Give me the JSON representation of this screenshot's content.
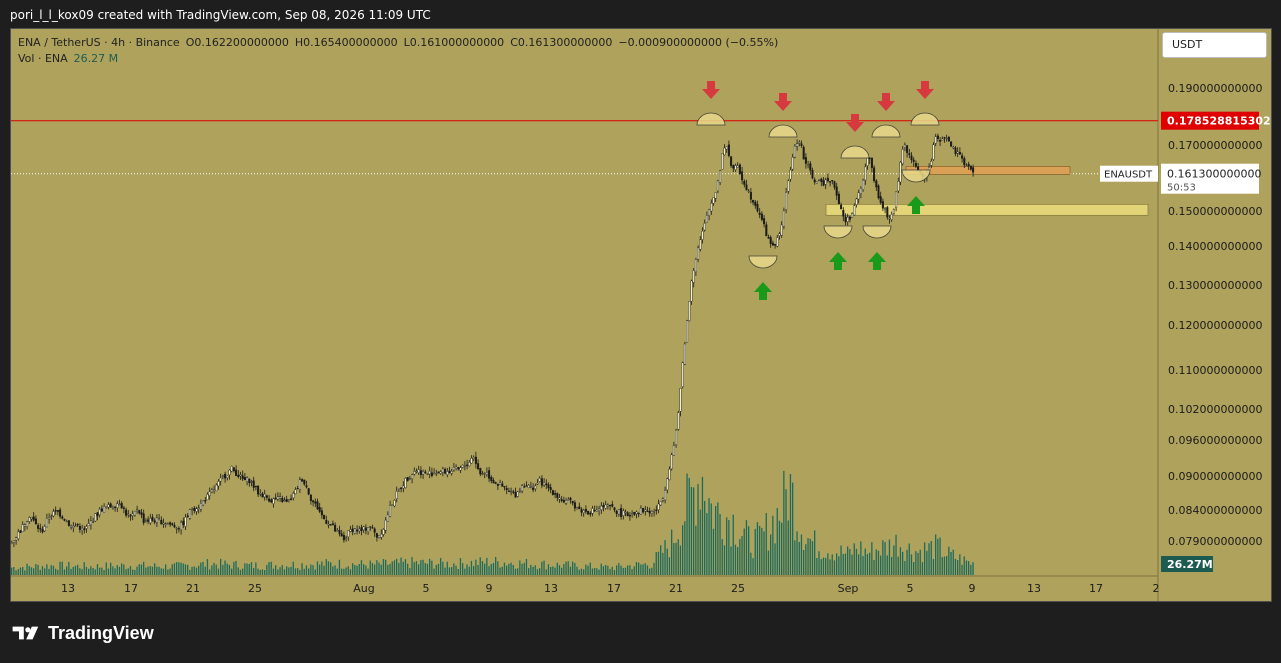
{
  "header": {
    "credit": "pori_l_l_kox09 created with TradingView.com, Sep 08, 2026 11:09 UTC"
  },
  "legend": {
    "symbol": "ENA / TetherUS · 4h · Binance",
    "open": "O0.162200000000",
    "high": "H0.165400000000",
    "low": "L0.161000000000",
    "close": "C0.161300000000",
    "change": "−0.000900000000 (−0.55%)",
    "vol_label": "Vol · ENA",
    "vol_value": "26.27 M"
  },
  "currency_button": "USDT",
  "brand": "TradingView",
  "chart_data": {
    "type": "candlestick",
    "symbol": "ENAUSDT",
    "timeframe": "4h",
    "exchange": "Binance",
    "y_axis": {
      "tick_labels": [
        "0.190000000000",
        "0.170000000000",
        "0.150000000000",
        "0.140000000000",
        "0.130000000000",
        "0.120000000000",
        "0.110000000000",
        "0.102000000000",
        "0.096000000000",
        "0.090000000000",
        "0.084000000000",
        "0.079000000000"
      ],
      "tick_values": [
        0.19,
        0.17,
        0.15,
        0.14,
        0.13,
        0.12,
        0.11,
        0.102,
        0.096,
        0.09,
        0.084,
        0.079
      ],
      "scale": "nonlinear (as printed)"
    },
    "x_axis": {
      "tick_labels": [
        "13",
        "17",
        "21",
        "25",
        "Aug",
        "5",
        "9",
        "13",
        "17",
        "21",
        "25",
        "Sep",
        "5",
        "9",
        "13",
        "17",
        "2"
      ]
    },
    "price_path": [
      [
        0,
        0.0788
      ],
      [
        10,
        0.081
      ],
      [
        18,
        0.0833
      ],
      [
        24,
        0.0816
      ],
      [
        30,
        0.0805
      ],
      [
        38,
        0.0832
      ],
      [
        46,
        0.0837
      ],
      [
        52,
        0.0828
      ],
      [
        60,
        0.0812
      ],
      [
        66,
        0.0816
      ],
      [
        72,
        0.0805
      ],
      [
        80,
        0.0823
      ],
      [
        90,
        0.0842
      ],
      [
        100,
        0.0847
      ],
      [
        108,
        0.0854
      ],
      [
        114,
        0.0835
      ],
      [
        120,
        0.0826
      ],
      [
        126,
        0.0844
      ],
      [
        132,
        0.0823
      ],
      [
        140,
        0.0824
      ],
      [
        150,
        0.0822
      ],
      [
        160,
        0.0816
      ],
      [
        168,
        0.0812
      ],
      [
        174,
        0.0825
      ],
      [
        180,
        0.0842
      ],
      [
        188,
        0.0848
      ],
      [
        196,
        0.0864
      ],
      [
        204,
        0.088
      ],
      [
        212,
        0.0899
      ],
      [
        220,
        0.0912
      ],
      [
        226,
        0.0903
      ],
      [
        232,
        0.0892
      ],
      [
        238,
        0.0893
      ],
      [
        246,
        0.0871
      ],
      [
        252,
        0.0866
      ],
      [
        260,
        0.0857
      ],
      [
        268,
        0.086
      ],
      [
        276,
        0.0852
      ],
      [
        284,
        0.0873
      ],
      [
        290,
        0.0897
      ],
      [
        296,
        0.0876
      ],
      [
        300,
        0.0857
      ],
      [
        306,
        0.0844
      ],
      [
        312,
        0.0826
      ],
      [
        318,
        0.0818
      ],
      [
        324,
        0.0806
      ],
      [
        332,
        0.0792
      ],
      [
        340,
        0.081
      ],
      [
        350,
        0.0806
      ],
      [
        358,
        0.0815
      ],
      [
        366,
        0.0796
      ],
      [
        372,
        0.0812
      ],
      [
        378,
        0.0843
      ],
      [
        386,
        0.0872
      ],
      [
        394,
        0.0893
      ],
      [
        404,
        0.0911
      ],
      [
        414,
        0.0904
      ],
      [
        426,
        0.0907
      ],
      [
        438,
        0.0908
      ],
      [
        448,
        0.0911
      ],
      [
        456,
        0.0921
      ],
      [
        462,
        0.0934
      ],
      [
        468,
        0.0903
      ],
      [
        474,
        0.0908
      ],
      [
        480,
        0.0893
      ],
      [
        488,
        0.0884
      ],
      [
        496,
        0.0873
      ],
      [
        504,
        0.0867
      ],
      [
        512,
        0.0887
      ],
      [
        520,
        0.0878
      ],
      [
        528,
        0.0891
      ],
      [
        536,
        0.088
      ],
      [
        544,
        0.0868
      ],
      [
        552,
        0.0855
      ],
      [
        560,
        0.0853
      ],
      [
        568,
        0.084
      ],
      [
        576,
        0.0837
      ],
      [
        584,
        0.084
      ],
      [
        592,
        0.0846
      ],
      [
        600,
        0.0844
      ],
      [
        608,
        0.0835
      ],
      [
        616,
        0.0832
      ],
      [
        624,
        0.0838
      ],
      [
        632,
        0.084
      ],
      [
        640,
        0.0836
      ],
      [
        646,
        0.0843
      ],
      [
        652,
        0.0868
      ],
      [
        658,
        0.0918
      ],
      [
        664,
        0.0966
      ],
      [
        668,
        0.104
      ],
      [
        672,
        0.114
      ],
      [
        676,
        0.122
      ],
      [
        680,
        0.132
      ],
      [
        686,
        0.139
      ],
      [
        692,
        0.145
      ],
      [
        698,
        0.151
      ],
      [
        704,
        0.156
      ],
      [
        708,
        0.162
      ],
      [
        712,
        0.17
      ],
      [
        716,
        0.169
      ],
      [
        720,
        0.163
      ],
      [
        726,
        0.163
      ],
      [
        732,
        0.159
      ],
      [
        738,
        0.155
      ],
      [
        744,
        0.152
      ],
      [
        750,
        0.148
      ],
      [
        756,
        0.142
      ],
      [
        762,
        0.14
      ],
      [
        768,
        0.143
      ],
      [
        772,
        0.15
      ],
      [
        776,
        0.158
      ],
      [
        780,
        0.165
      ],
      [
        784,
        0.17
      ],
      [
        788,
        0.172
      ],
      [
        792,
        0.166
      ],
      [
        798,
        0.162
      ],
      [
        804,
        0.159
      ],
      [
        810,
        0.158
      ],
      [
        816,
        0.16
      ],
      [
        822,
        0.159
      ],
      [
        828,
        0.151
      ],
      [
        834,
        0.147
      ],
      [
        840,
        0.149
      ],
      [
        846,
        0.154
      ],
      [
        852,
        0.16
      ],
      [
        856,
        0.167
      ],
      [
        860,
        0.164
      ],
      [
        866,
        0.154
      ],
      [
        872,
        0.151
      ],
      [
        878,
        0.147
      ],
      [
        882,
        0.151
      ],
      [
        886,
        0.158
      ],
      [
        890,
        0.168
      ],
      [
        894,
        0.17
      ],
      [
        898,
        0.166
      ],
      [
        904,
        0.164
      ],
      [
        910,
        0.16
      ],
      [
        916,
        0.162
      ],
      [
        920,
        0.166
      ],
      [
        924,
        0.173
      ],
      [
        928,
        0.172
      ],
      [
        934,
        0.173
      ],
      [
        940,
        0.169
      ],
      [
        946,
        0.167
      ],
      [
        952,
        0.165
      ],
      [
        958,
        0.163
      ],
      [
        962,
        0.1613
      ]
    ],
    "volume_path": [
      [
        0,
        8
      ],
      [
        40,
        10
      ],
      [
        80,
        9
      ],
      [
        120,
        10
      ],
      [
        160,
        9
      ],
      [
        200,
        12
      ],
      [
        240,
        10
      ],
      [
        280,
        11
      ],
      [
        320,
        12
      ],
      [
        360,
        11
      ],
      [
        400,
        13
      ],
      [
        440,
        12
      ],
      [
        480,
        14
      ],
      [
        520,
        12
      ],
      [
        560,
        10
      ],
      [
        600,
        8
      ],
      [
        640,
        12
      ],
      [
        660,
        35
      ],
      [
        670,
        60
      ],
      [
        680,
        85
      ],
      [
        690,
        110
      ],
      [
        700,
        70
      ],
      [
        710,
        65
      ],
      [
        720,
        60
      ],
      [
        730,
        45
      ],
      [
        740,
        35
      ],
      [
        750,
        40
      ],
      [
        760,
        55
      ],
      [
        770,
        70
      ],
      [
        778,
        95
      ],
      [
        786,
        60
      ],
      [
        796,
        40
      ],
      [
        806,
        30
      ],
      [
        816,
        28
      ],
      [
        826,
        25
      ],
      [
        836,
        22
      ],
      [
        846,
        30
      ],
      [
        856,
        24
      ],
      [
        866,
        28
      ],
      [
        876,
        30
      ],
      [
        886,
        35
      ],
      [
        896,
        28
      ],
      [
        906,
        25
      ],
      [
        916,
        28
      ],
      [
        926,
        30
      ],
      [
        936,
        22
      ],
      [
        946,
        18
      ],
      [
        956,
        14
      ],
      [
        962,
        12
      ]
    ],
    "max_volume": 130,
    "annotations": {
      "resistance_price_label": "0.178528815302",
      "current_price_label": "0.161300000000",
      "countdown": "50:53",
      "symbol_tag": "ENAUSDT",
      "volume_tag": "26.27M"
    },
    "colors": {
      "background": "#aea25c",
      "resistance_line": "#e00000",
      "support_zone_upper": "#d9a056",
      "support_zone_lower": "#e3d477",
      "volume": "#1d6b5c",
      "arrow_down": "#d63a3f",
      "arrow_up": "#1a9a1a",
      "candle": "#1a1a1a"
    }
  }
}
